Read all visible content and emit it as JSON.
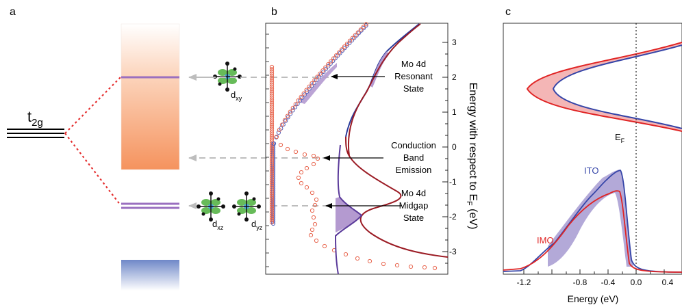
{
  "panel_a": {
    "letter": "a",
    "t2g": {
      "base": "t",
      "sub": "2g"
    },
    "orbital_labels": {
      "dxy": {
        "base": "d",
        "sub": "xy"
      },
      "dxz": {
        "base": "d",
        "sub": "xz"
      },
      "dyz": {
        "base": "d",
        "sub": "yz"
      }
    },
    "colors": {
      "conduction_band": "#f5a070",
      "valence_band": "#7a93cc",
      "level": "#9a6fbf",
      "splitting": "#e53030",
      "arrow": "#b8b8b8"
    }
  },
  "panel_b": {
    "letter": "b",
    "ylabel": {
      "pre": "Energy with respect to E",
      "sub": "F",
      "post": " (eV)"
    },
    "yticks": [
      "3",
      "2",
      "1",
      "0",
      "-1",
      "-2",
      "-3"
    ],
    "annotations": [
      {
        "lines": [
          "Mo 4d",
          "Resonant",
          "State"
        ]
      },
      {
        "lines": [
          "Conduction",
          "Band",
          "Emission"
        ]
      },
      {
        "lines": [
          "Mo 4d",
          "Midgap",
          "State"
        ]
      }
    ],
    "colors": {
      "red_curve": "#9b1b24",
      "blue_curve": "#2a3a9a",
      "fill": "#b49ad0",
      "markers_red": "#e8664f",
      "markers_blue": "#5560b8"
    }
  },
  "panel_c": {
    "letter": "c",
    "xlabel": "Energy (eV)",
    "xticks": [
      "-1.2",
      "-0.8",
      "-0.4",
      "0.0",
      "0.4"
    ],
    "ef_label": {
      "base": "E",
      "sub": "F"
    },
    "series": [
      {
        "name": "ITO",
        "color": "#3545a8"
      },
      {
        "name": "IMO",
        "color": "#e02424"
      }
    ],
    "fills": {
      "between_parabolas": "#f4b6b6",
      "between_dos": "#b3a9d8"
    }
  }
}
